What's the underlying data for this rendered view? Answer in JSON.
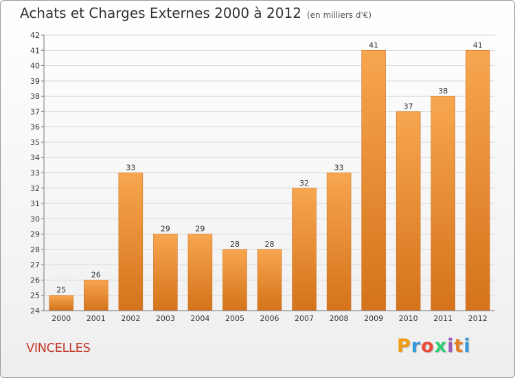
{
  "header": {
    "title": "Achats et Charges Externes 2000 à 2012",
    "subtitle": "(en milliers d'€)"
  },
  "footer": {
    "commune": "VINCELLES",
    "logo_text": "Proxiti",
    "logo_letter_colors": [
      "#f39c12",
      "#3498db",
      "#e74c3c",
      "#2ecc71",
      "#9b59b6",
      "#e67e22",
      "#3498db"
    ]
  },
  "chart_data": {
    "type": "bar",
    "categories": [
      "2000",
      "2001",
      "2002",
      "2003",
      "2004",
      "2005",
      "2006",
      "2007",
      "2008",
      "2009",
      "2010",
      "2011",
      "2012"
    ],
    "values": [
      25,
      26,
      33,
      29,
      29,
      28,
      28,
      32,
      33,
      41,
      37,
      38,
      41
    ],
    "ylim": [
      24,
      42
    ],
    "yticks": [
      24,
      25,
      26,
      27,
      28,
      29,
      30,
      31,
      32,
      33,
      34,
      35,
      36,
      37,
      38,
      39,
      40,
      41,
      42
    ],
    "grid": true,
    "bar_color_top": "#f7a64f",
    "bar_color_bottom": "#d4731b"
  }
}
